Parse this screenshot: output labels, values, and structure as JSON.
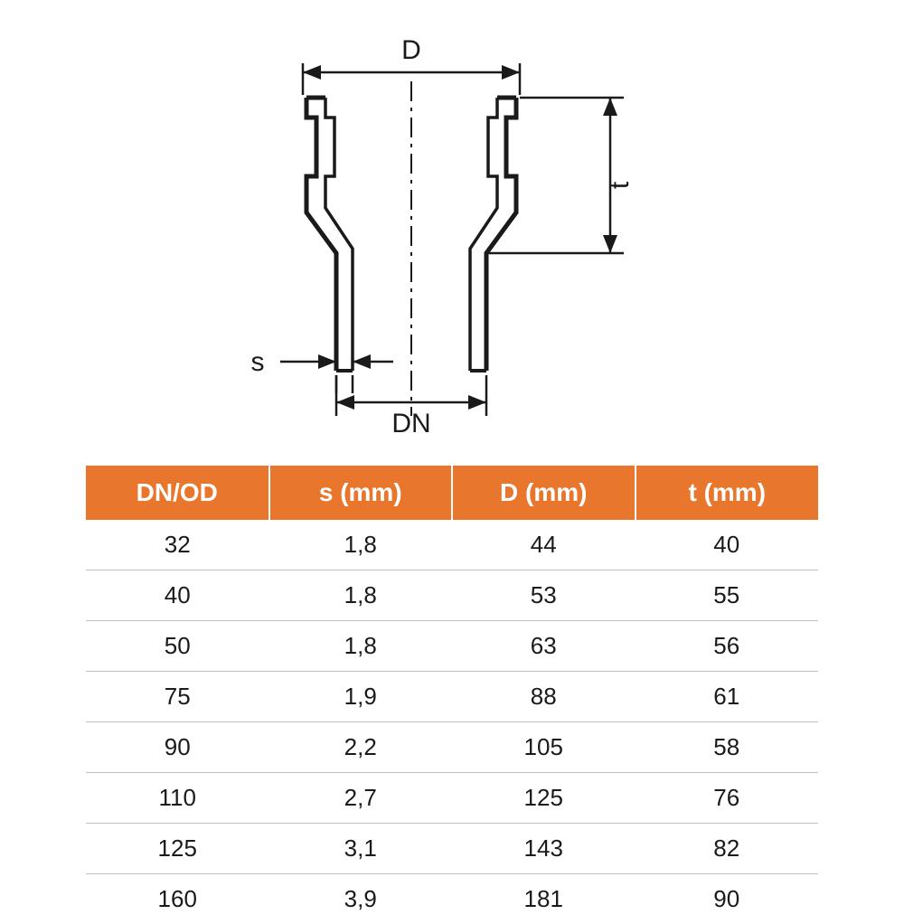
{
  "diagram": {
    "labels": {
      "D": "D",
      "t": "t",
      "s": "s",
      "DN": "DN"
    },
    "stroke_color": "#1a1a1a",
    "centerline_color": "#1a1a1a"
  },
  "table": {
    "header_bg": "#e8762c",
    "header_fg": "#ffffff",
    "row_border": "#bfbfbf",
    "cell_color": "#1a1a1a",
    "columns": [
      "DN/OD",
      "s (mm)",
      "D (mm)",
      "t (mm)"
    ],
    "rows": [
      [
        "32",
        "1,8",
        "44",
        "40"
      ],
      [
        "40",
        "1,8",
        "53",
        "55"
      ],
      [
        "50",
        "1,8",
        "63",
        "56"
      ],
      [
        "75",
        "1,9",
        "88",
        "61"
      ],
      [
        "90",
        "2,2",
        "105",
        "58"
      ],
      [
        "110",
        "2,7",
        "125",
        "76"
      ],
      [
        "125",
        "3,1",
        "143",
        "82"
      ],
      [
        "160",
        "3,9",
        "181",
        "90"
      ]
    ]
  }
}
